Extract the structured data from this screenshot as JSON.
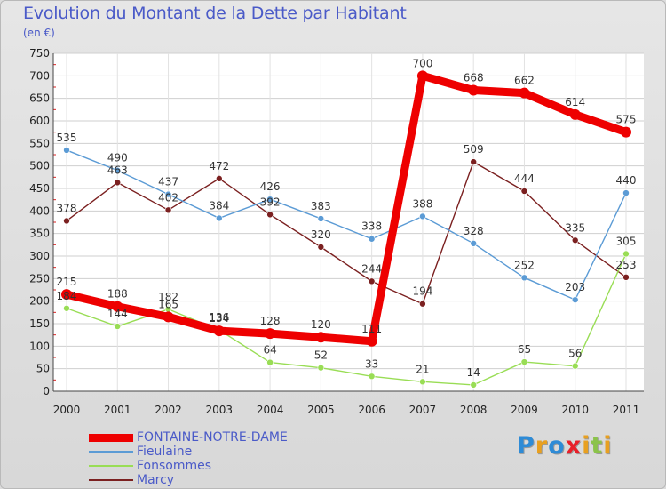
{
  "title": "Evolution du Montant de la Dette par Habitant",
  "subtitle": "(en €)",
  "logo": {
    "text": "Proxiti",
    "colors": [
      "#2e8bd6",
      "#e8a020",
      "#2e8bd6",
      "#e8202a",
      "#e8a020",
      "#8bc34a",
      "#e8a020"
    ]
  },
  "chart_data": {
    "type": "line",
    "title": "Evolution du Montant de la Dette par Habitant",
    "ylabel": "(en €)",
    "xlabel": "",
    "x": [
      "2000",
      "2001",
      "2002",
      "2003",
      "2004",
      "2005",
      "2006",
      "2007",
      "2008",
      "2009",
      "2010",
      "2011"
    ],
    "ylim": [
      0,
      750
    ],
    "yticks": [
      0,
      50,
      100,
      150,
      200,
      250,
      300,
      350,
      400,
      450,
      500,
      550,
      600,
      650,
      700,
      750
    ],
    "grid": true,
    "legend_position": "bottom-left",
    "series": [
      {
        "name": "FONTAINE-NOTRE-DAME",
        "color": "#ee0000",
        "values": [
          215,
          188,
          165,
          134,
          128,
          120,
          111,
          700,
          668,
          662,
          614,
          575
        ]
      },
      {
        "name": "Fieulaine",
        "color": "#5b9bd5",
        "values": [
          535,
          490,
          437,
          384,
          426,
          383,
          338,
          388,
          328,
          252,
          203,
          440
        ]
      },
      {
        "name": "Fonsommes",
        "color": "#99dd55",
        "values": [
          184,
          144,
          182,
          136,
          64,
          52,
          33,
          21,
          14,
          65,
          56,
          305
        ]
      },
      {
        "name": "Marcy",
        "color": "#7b2020",
        "values": [
          378,
          463,
          402,
          472,
          392,
          320,
          244,
          194,
          509,
          444,
          335,
          253
        ]
      }
    ]
  }
}
